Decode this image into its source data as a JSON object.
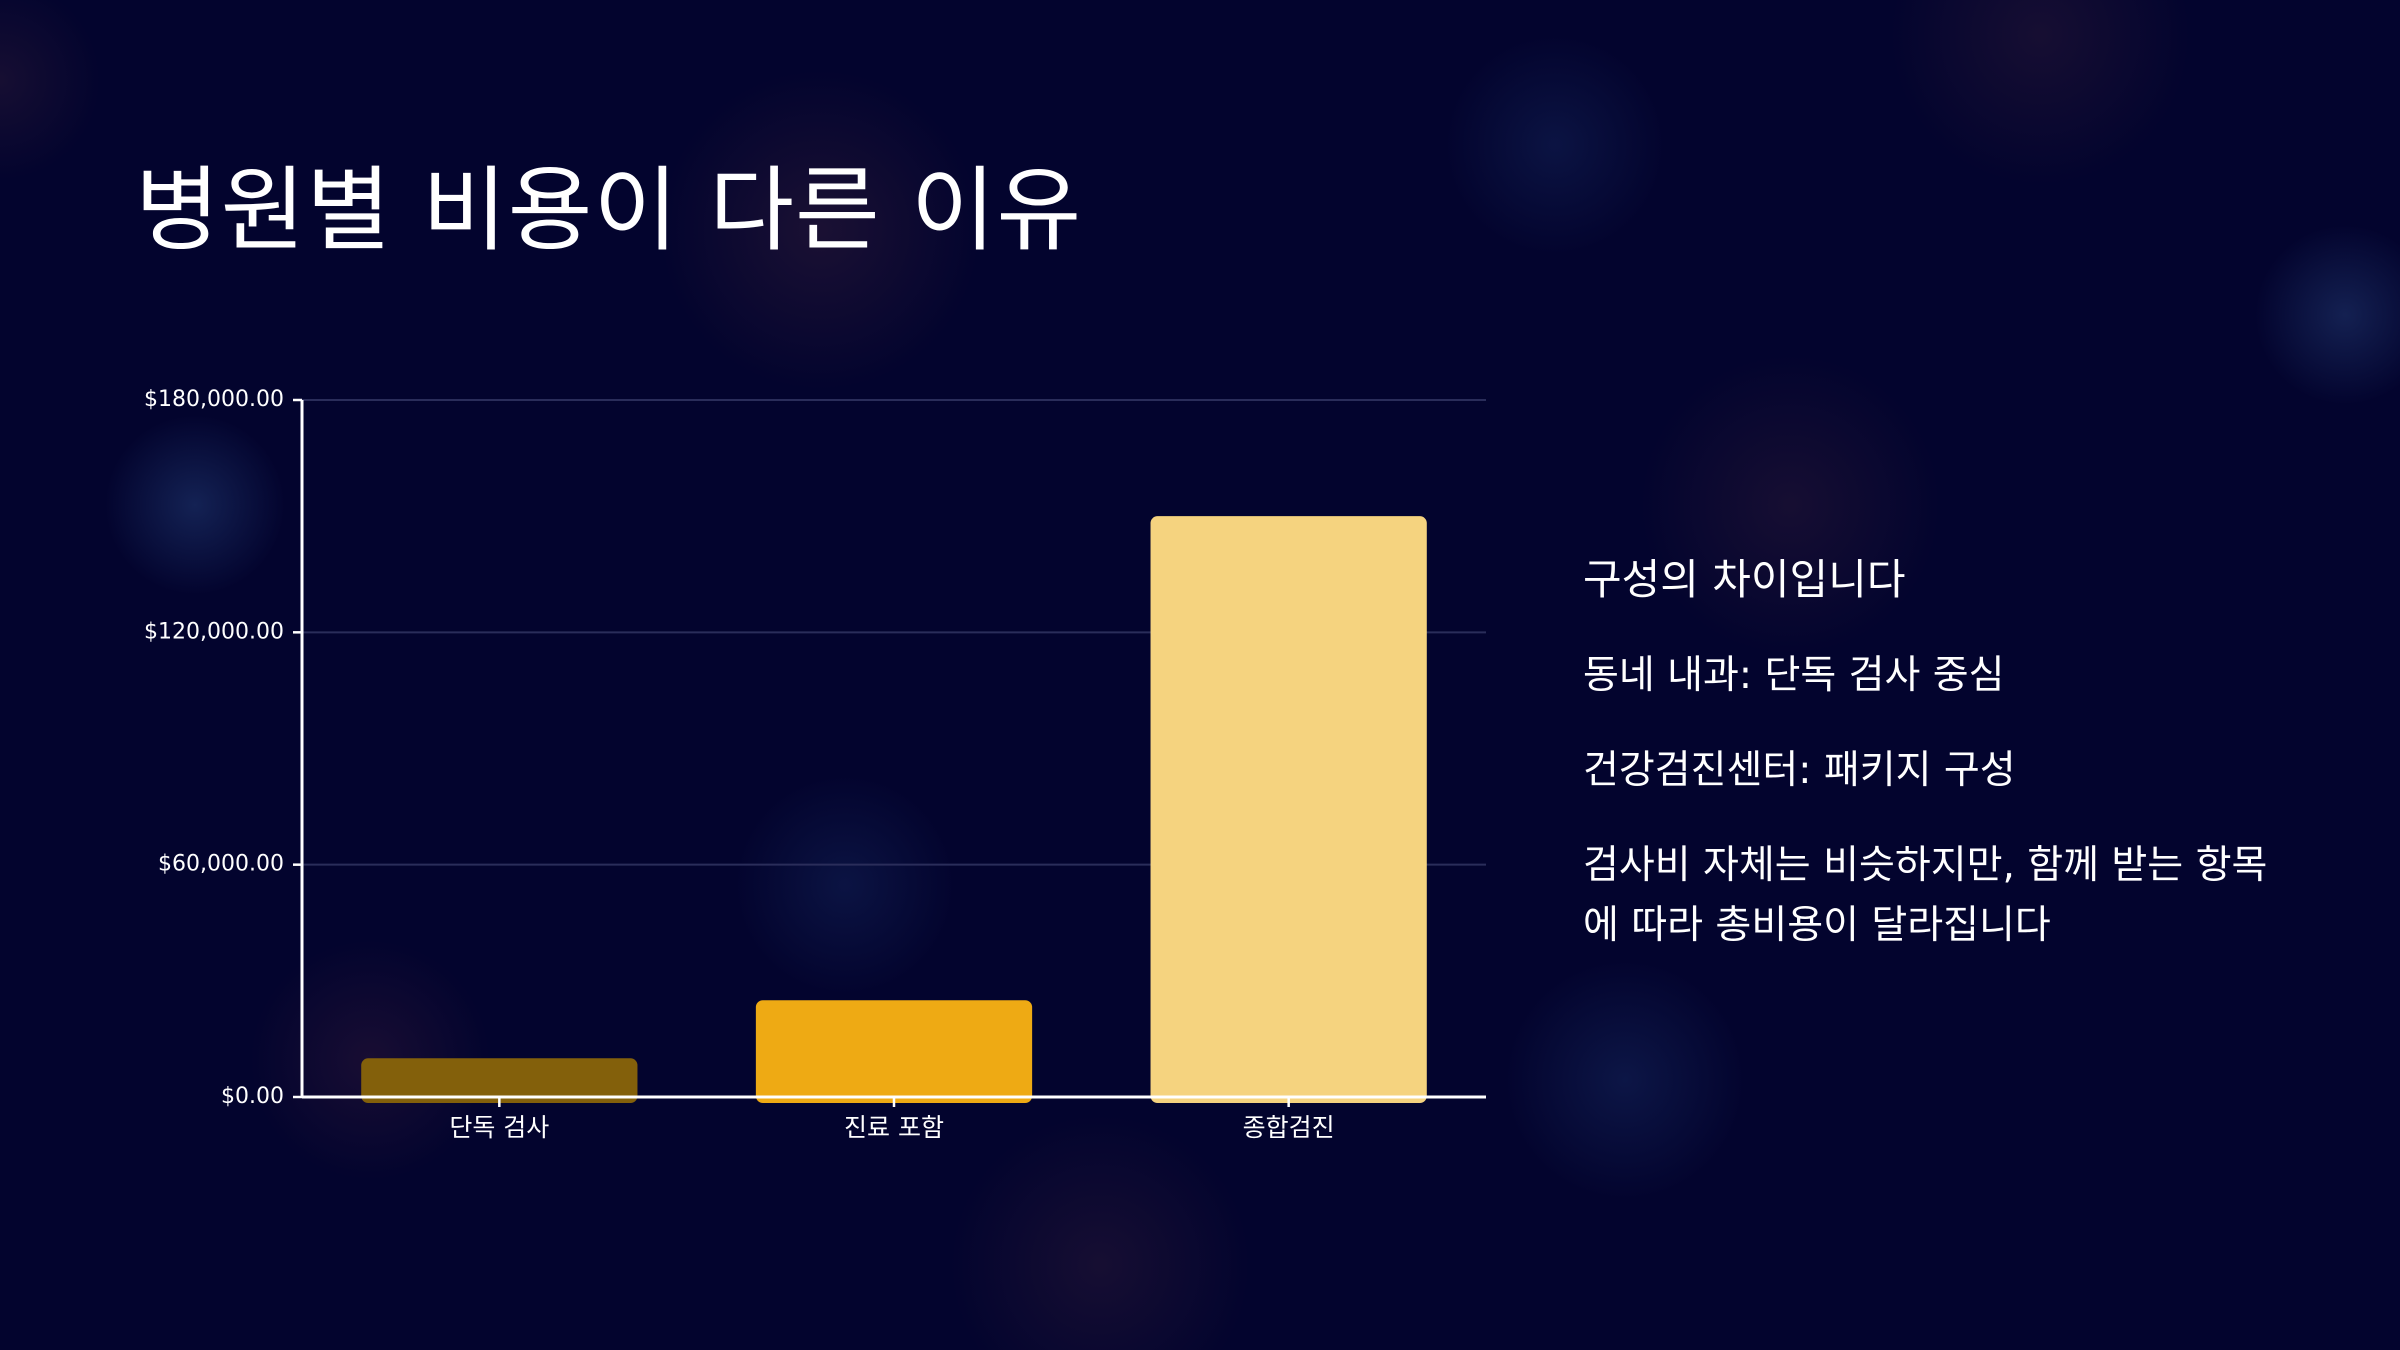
{
  "slide": {
    "title": "병원별 비용이 다른 이유"
  },
  "side_panel": {
    "heading": "구성의 차이입니다",
    "items": [
      "동네 내과: 단독 검사 중심",
      "건강검진센터: 패키지 구성"
    ],
    "note": "검사비 자체는 비슷하지만, 함께 받는 항목에 따라 총비용이 달라집니다"
  },
  "chart_data": {
    "type": "bar",
    "categories": [
      "단독 검사",
      "진료 포함",
      "종합검진"
    ],
    "values": [
      10000,
      25000,
      150000
    ],
    "colors": [
      "#83600b",
      "#eeaa14",
      "#f5d37f"
    ],
    "ylim": [
      0,
      180000
    ],
    "yticks": [
      0,
      60000,
      120000,
      180000
    ],
    "ytick_labels": [
      "$0.00",
      "$60,000.00",
      "$120,000.00",
      "$180,000.00"
    ],
    "title": "",
    "xlabel": "",
    "ylabel": "",
    "grid": true,
    "legend": "none",
    "gridline_color": "#2a2d5a",
    "axis_color": "#ffffff"
  }
}
